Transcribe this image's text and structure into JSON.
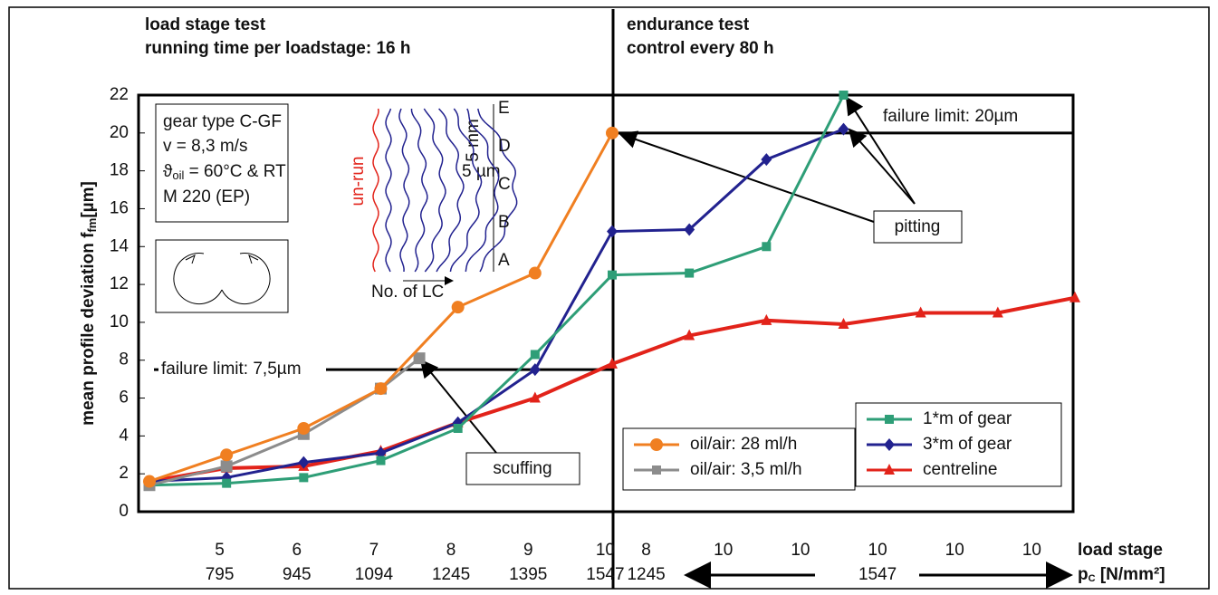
{
  "chart_data": {
    "type": "line",
    "header_left": [
      "load stage test",
      "running time per loadstage: 16 h"
    ],
    "header_right": [
      "endurance test",
      "control every 80 h"
    ],
    "y_label": "mean profile deviation",
    "y_label_f": "f",
    "y_label_sub": "fm",
    "y_label_unit": "[µm]",
    "ylim": [
      0,
      22
    ],
    "yticks": [
      0,
      2,
      4,
      6,
      8,
      10,
      12,
      14,
      16,
      18,
      20,
      22
    ],
    "xlim": [
      0,
      12
    ],
    "stage_row": {
      "name": "load stage",
      "labels": [
        "5",
        "6",
        "7",
        "8",
        "9",
        "10",
        "8",
        "10",
        "10",
        "10",
        "10",
        "10"
      ]
    },
    "pressure_row": {
      "name_p": "p",
      "name_sub": "C",
      "name_unit": " [N/mm²]",
      "labels": [
        "795",
        "945",
        "1094",
        "1245",
        "1395",
        "1547",
        "1245",
        null,
        null,
        "1547",
        null,
        null
      ]
    },
    "series": [
      {
        "name": "oil/air: 28 ml/h",
        "color": "#f07f21",
        "marker": "circle",
        "x": [
          0,
          1,
          2,
          3,
          4,
          5,
          6
        ],
        "values": [
          1.6,
          3.0,
          4.4,
          6.5,
          10.8,
          12.6,
          20.0
        ]
      },
      {
        "name": "oil/air: 3,5 ml/h",
        "color": "#8c8c8c",
        "marker": "square",
        "x": [
          0,
          1,
          2,
          3,
          3.5
        ],
        "values": [
          1.4,
          2.4,
          4.1,
          6.5,
          8.1
        ]
      },
      {
        "name": "1*m of gear",
        "color": "#2e9e77",
        "marker": "square",
        "x": [
          0,
          1,
          2,
          3,
          4,
          5,
          6,
          7,
          8,
          9
        ],
        "values": [
          1.4,
          1.5,
          1.8,
          2.7,
          4.4,
          8.3,
          12.5,
          12.6,
          14.0,
          22.0
        ]
      },
      {
        "name": "3*m of gear",
        "color": "#22228f",
        "marker": "diamond",
        "x": [
          0,
          1,
          2,
          3,
          4,
          5,
          6,
          7,
          8,
          9
        ],
        "values": [
          1.6,
          1.8,
          2.6,
          3.1,
          4.7,
          7.5,
          14.8,
          14.9,
          18.6,
          20.2
        ]
      },
      {
        "name": "centreline",
        "color": "#e2231a",
        "marker": "triangle",
        "x": [
          0,
          1,
          2,
          3,
          4,
          5,
          6,
          7,
          8,
          9,
          10,
          11,
          12
        ],
        "values": [
          1.6,
          2.3,
          2.4,
          3.2,
          4.7,
          6.0,
          7.8,
          9.3,
          10.1,
          9.9,
          10.5,
          10.5,
          11.3
        ]
      }
    ],
    "failure_limits": [
      {
        "label": "failure limit: 7,5µm",
        "value": 7.5
      },
      {
        "label": "failure limit: 20µm",
        "value": 20
      }
    ],
    "annotations": {
      "pitting": "pitting",
      "scuffing": "scuffing"
    },
    "gear_info": {
      "line1": "gear type C-GF",
      "line2": "v = 8,3 m/s",
      "theta": "ϑ",
      "theta_sub": "oil",
      "line3": " = 60°C & RT",
      "line4": "M 220 (EP)"
    },
    "inset": {
      "un_run": "un-run",
      "scale_mm": "5 mm",
      "scale_um": "5 µm",
      "levels": [
        "E",
        "D",
        "C",
        "B",
        "A"
      ],
      "x_label": "No. of LC"
    }
  }
}
